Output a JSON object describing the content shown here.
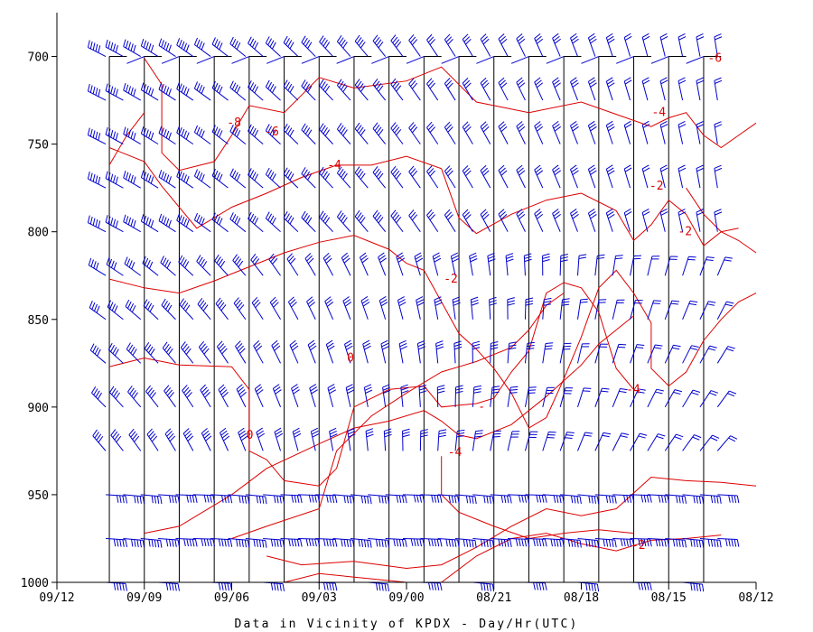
{
  "chart_data": {
    "type": "time-height-cross-section",
    "xlabel": "Data in Vicinity of KPDX - Day/Hr(UTC)",
    "ylabel": "",
    "x_ticks": [
      "09/12",
      "09/09",
      "09/06",
      "09/03",
      "09/00",
      "08/21",
      "08/18",
      "08/15",
      "08/12"
    ],
    "x_time_hours": [
      96,
      81,
      66,
      51,
      36,
      21,
      6,
      -9,
      -24
    ],
    "y_ticks": [
      700,
      750,
      800,
      850,
      900,
      950,
      1000
    ],
    "y_range": [
      1000,
      675
    ],
    "x_range": [
      96,
      -24
    ],
    "sounding_times": [
      87,
      84,
      81,
      78,
      75,
      72,
      69,
      66,
      63,
      60,
      57,
      54,
      51,
      48,
      45,
      42,
      39,
      36,
      33,
      30,
      27,
      24,
      21,
      18,
      15,
      12,
      9,
      6,
      3,
      0,
      -3,
      -6,
      -9,
      -12,
      -15,
      -18
    ],
    "wind_levels": [
      700,
      725,
      750,
      775,
      800,
      825,
      850,
      875,
      900,
      925,
      950,
      975,
      1000
    ],
    "colors": {
      "axes": "#000000",
      "barbs": "#0000cc",
      "isotherms": "#dd0000"
    },
    "isotherm_labels": [
      {
        "text": "-8",
        "t": 65.6,
        "p": 740
      },
      {
        "text": "-6",
        "t": 59.1,
        "p": 745
      },
      {
        "text": "-4",
        "t": 48.4,
        "p": 764
      },
      {
        "text": "-4",
        "t": -7.3,
        "p": 734
      },
      {
        "text": "-6",
        "t": -16.9,
        "p": 703
      },
      {
        "text": "-2",
        "t": -6.9,
        "p": 776
      },
      {
        "text": "-2",
        "t": -11.8,
        "p": 802
      },
      {
        "text": "-2",
        "t": 28.4,
        "p": 829
      },
      {
        "text": "0",
        "t": 45.6,
        "p": 874
      },
      {
        "text": "0",
        "t": 62.9,
        "p": 918
      },
      {
        "text": "-4",
        "t": 27.7,
        "p": 928
      },
      {
        "text": "-4",
        "t": -2.9,
        "p": 892
      },
      {
        "text": "-",
        "t": 23.1,
        "p": 902
      },
      {
        "text": "-2",
        "t": -3.8,
        "p": 981
      }
    ],
    "isotherms": [
      [
        [
          81,
          701
        ],
        [
          78,
          716
        ],
        [
          78,
          755
        ],
        [
          75,
          765
        ],
        [
          69,
          760
        ],
        [
          66,
          745
        ],
        [
          63,
          728
        ],
        [
          57,
          732
        ],
        [
          51,
          712
        ],
        [
          45,
          718
        ],
        [
          36,
          714
        ],
        [
          30,
          706
        ],
        [
          24,
          726
        ],
        [
          15,
          732
        ],
        [
          6,
          726
        ],
        [
          0,
          733
        ],
        [
          -6,
          740
        ],
        [
          -9,
          735
        ],
        [
          -12,
          732
        ],
        [
          -15,
          745
        ],
        [
          -18,
          752
        ],
        [
          -21,
          745
        ],
        [
          -24,
          738
        ]
      ],
      [
        [
          87,
          752
        ],
        [
          81,
          760
        ],
        [
          78,
          774
        ],
        [
          72,
          798
        ],
        [
          66,
          786
        ],
        [
          60,
          778
        ],
        [
          54,
          769
        ],
        [
          48,
          762
        ],
        [
          42,
          762
        ],
        [
          36,
          757
        ],
        [
          30,
          764
        ],
        [
          27,
          792
        ],
        [
          24,
          801
        ],
        [
          18,
          790
        ],
        [
          12,
          782
        ],
        [
          6,
          778
        ],
        [
          0,
          788
        ],
        [
          -3,
          805
        ],
        [
          -6,
          796
        ],
        [
          -9,
          782
        ],
        [
          -12,
          790
        ],
        [
          -15,
          808
        ],
        [
          -18,
          800
        ],
        [
          -21,
          805
        ],
        [
          -24,
          812
        ]
      ],
      [
        [
          87,
          827
        ],
        [
          81,
          832
        ],
        [
          75,
          835
        ],
        [
          69,
          828
        ],
        [
          63,
          820
        ],
        [
          57,
          812
        ],
        [
          51,
          806
        ],
        [
          45,
          802
        ],
        [
          39,
          810
        ],
        [
          36,
          818
        ],
        [
          33,
          822
        ],
        [
          30,
          840
        ],
        [
          27,
          858
        ],
        [
          24,
          867
        ],
        [
          21,
          878
        ],
        [
          18,
          892
        ],
        [
          15,
          912
        ],
        [
          12,
          906
        ],
        [
          9,
          884
        ],
        [
          6,
          860
        ],
        [
          3,
          832
        ],
        [
          0,
          822
        ],
        [
          -3,
          835
        ],
        [
          -6,
          852
        ],
        [
          -6,
          878
        ],
        [
          -9,
          888
        ],
        [
          -12,
          880
        ],
        [
          -15,
          862
        ],
        [
          -18,
          850
        ],
        [
          -21,
          840
        ],
        [
          -24,
          835
        ]
      ],
      [
        [
          87,
          877
        ],
        [
          81,
          872
        ],
        [
          75,
          876
        ],
        [
          66,
          877
        ],
        [
          63,
          890
        ],
        [
          63,
          925
        ],
        [
          60,
          930
        ],
        [
          57,
          942
        ],
        [
          51,
          945
        ],
        [
          48,
          935
        ],
        [
          45,
          900
        ],
        [
          39,
          890
        ],
        [
          33,
          888
        ],
        [
          30,
          900
        ],
        [
          24,
          898
        ],
        [
          21,
          895
        ],
        [
          18,
          880
        ],
        [
          15,
          868
        ],
        [
          12,
          835
        ],
        [
          9,
          829
        ],
        [
          6,
          832
        ],
        [
          3,
          846
        ],
        [
          0,
          878
        ],
        [
          -3,
          890
        ]
      ],
      [
        [
          81,
          972
        ],
        [
          75,
          968
        ],
        [
          72,
          962
        ],
        [
          66,
          950
        ],
        [
          60,
          935
        ],
        [
          51,
          921
        ],
        [
          45,
          912
        ],
        [
          39,
          908
        ],
        [
          33,
          902
        ],
        [
          30,
          908
        ],
        [
          27,
          916
        ],
        [
          24,
          918
        ],
        [
          18,
          910
        ],
        [
          12,
          894
        ],
        [
          6,
          876
        ],
        [
          3,
          864
        ],
        [
          0,
          856
        ],
        [
          -3,
          848
        ]
      ],
      [
        [
          66,
          975
        ],
        [
          60,
          968
        ],
        [
          51,
          958
        ],
        [
          48,
          925
        ],
        [
          42,
          905
        ],
        [
          36,
          892
        ],
        [
          30,
          880
        ],
        [
          24,
          874
        ],
        [
          18,
          866
        ],
        [
          15,
          856
        ],
        [
          12,
          842
        ],
        [
          9,
          835
        ]
      ],
      [
        [
          60,
          985
        ],
        [
          54,
          990
        ],
        [
          45,
          988
        ],
        [
          36,
          992
        ],
        [
          30,
          990
        ],
        [
          24,
          980
        ],
        [
          18,
          968
        ],
        [
          12,
          958
        ],
        [
          6,
          962
        ],
        [
          0,
          958
        ],
        [
          -6,
          940
        ],
        [
          -12,
          942
        ],
        [
          -18,
          943
        ],
        [
          -24,
          945
        ]
      ],
      [
        [
          30,
          1000
        ],
        [
          24,
          985
        ],
        [
          18,
          975
        ],
        [
          12,
          972
        ],
        [
          6,
          978
        ],
        [
          0,
          982
        ],
        [
          -6,
          976
        ],
        [
          -12,
          975
        ],
        [
          -18,
          973
        ]
      ],
      [
        [
          57,
          1000
        ],
        [
          51,
          995
        ],
        [
          42,
          998
        ],
        [
          36,
          1000
        ]
      ],
      [
        [
          30,
          928
        ],
        [
          30,
          950
        ],
        [
          27,
          960
        ],
        [
          21,
          968
        ],
        [
          15,
          975
        ],
        [
          9,
          972
        ],
        [
          3,
          970
        ],
        [
          -3,
          972
        ]
      ],
      [
        [
          87,
          762
        ],
        [
          84,
          745
        ],
        [
          81,
          732
        ]
      ],
      [
        [
          -12,
          775
        ],
        [
          -15,
          790
        ],
        [
          -18,
          800
        ],
        [
          -21,
          798
        ]
      ]
    ]
  }
}
